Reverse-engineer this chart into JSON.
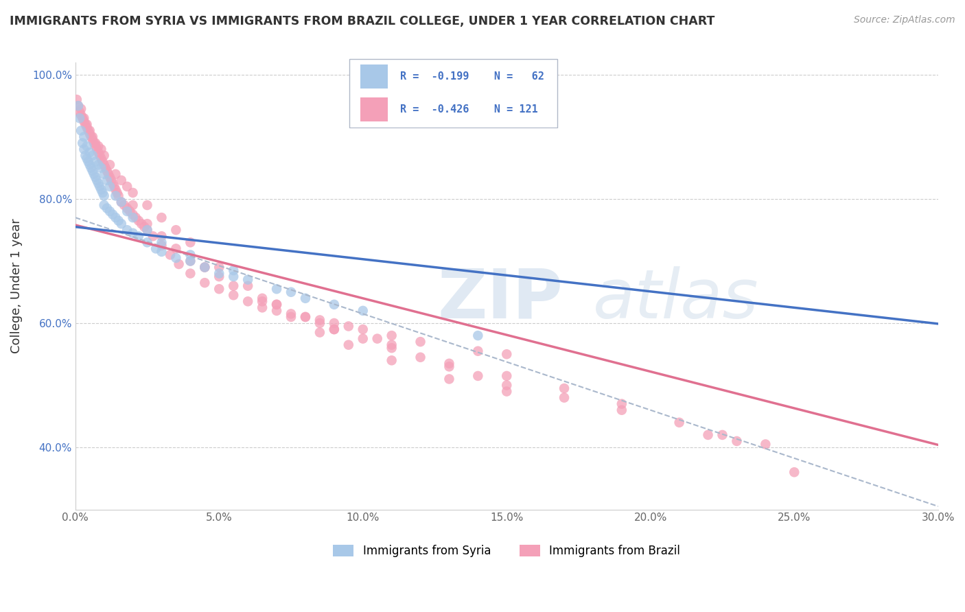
{
  "title": "IMMIGRANTS FROM SYRIA VS IMMIGRANTS FROM BRAZIL COLLEGE, UNDER 1 YEAR CORRELATION CHART",
  "source": "Source: ZipAtlas.com",
  "ylabel_label": "College, Under 1 year",
  "xlim": [
    0.0,
    30.0
  ],
  "ylim": [
    30.0,
    102.0
  ],
  "yticks": [
    40.0,
    60.0,
    80.0,
    100.0
  ],
  "xticks": [
    0.0,
    5.0,
    10.0,
    15.0,
    20.0,
    25.0,
    30.0
  ],
  "color_syria": "#a8c8e8",
  "color_brazil": "#f4a0b8",
  "color_text_blue": "#4472c4",
  "color_line_syria": "#4472c4",
  "color_line_brazil": "#e07090",
  "color_dashed": "#aab8cc",
  "syria_intercept": 75.5,
  "syria_slope": -0.52,
  "brazil_intercept": 75.8,
  "brazil_slope": -1.18,
  "dashed_intercept": 77.0,
  "dashed_slope": -1.55,
  "syria_points_x": [
    0.1,
    0.15,
    0.2,
    0.25,
    0.3,
    0.35,
    0.4,
    0.45,
    0.5,
    0.55,
    0.6,
    0.65,
    0.7,
    0.75,
    0.8,
    0.85,
    0.9,
    0.95,
    1.0,
    1.0,
    1.1,
    1.2,
    1.3,
    1.4,
    1.5,
    1.6,
    1.8,
    2.0,
    2.2,
    2.5,
    2.8,
    3.0,
    3.5,
    4.0,
    4.5,
    5.0,
    5.5,
    6.0,
    7.0,
    8.0,
    9.0,
    10.0,
    0.3,
    0.4,
    0.5,
    0.6,
    0.7,
    0.8,
    0.9,
    1.0,
    1.1,
    1.2,
    1.4,
    1.6,
    1.8,
    2.0,
    2.5,
    3.0,
    4.0,
    5.5,
    7.5,
    14.0
  ],
  "syria_points_y": [
    95.0,
    93.0,
    91.0,
    89.0,
    88.0,
    87.0,
    86.5,
    86.0,
    85.5,
    85.0,
    84.5,
    84.0,
    83.5,
    83.0,
    82.5,
    82.0,
    81.5,
    81.0,
    80.5,
    79.0,
    78.5,
    78.0,
    77.5,
    77.0,
    76.5,
    76.0,
    75.0,
    74.5,
    74.0,
    73.0,
    72.0,
    71.5,
    70.5,
    70.0,
    69.0,
    68.0,
    67.5,
    67.0,
    65.5,
    64.0,
    63.0,
    62.0,
    90.0,
    88.5,
    87.5,
    87.0,
    86.0,
    85.5,
    85.0,
    84.0,
    83.0,
    82.0,
    80.5,
    79.5,
    78.0,
    77.0,
    75.0,
    73.0,
    71.0,
    68.5,
    65.0,
    58.0
  ],
  "brazil_points_x": [
    0.05,
    0.1,
    0.15,
    0.2,
    0.25,
    0.3,
    0.35,
    0.4,
    0.45,
    0.5,
    0.55,
    0.6,
    0.65,
    0.7,
    0.75,
    0.8,
    0.85,
    0.9,
    0.95,
    1.0,
    1.05,
    1.1,
    1.15,
    1.2,
    1.25,
    1.3,
    1.35,
    1.4,
    1.45,
    1.5,
    1.6,
    1.7,
    1.8,
    1.9,
    2.0,
    2.1,
    2.2,
    2.3,
    2.4,
    2.5,
    2.7,
    3.0,
    3.3,
    3.6,
    4.0,
    4.5,
    5.0,
    5.5,
    6.0,
    6.5,
    7.0,
    7.5,
    8.0,
    8.5,
    9.0,
    9.5,
    10.0,
    11.0,
    12.0,
    14.0,
    15.0,
    0.2,
    0.3,
    0.4,
    0.5,
    0.6,
    0.7,
    0.8,
    0.9,
    1.0,
    1.2,
    1.4,
    1.6,
    1.8,
    2.0,
    2.5,
    3.0,
    3.5,
    4.0,
    5.0,
    6.0,
    7.0,
    8.0,
    9.0,
    10.0,
    11.0,
    12.0,
    13.0,
    14.0,
    15.0,
    17.0,
    19.0,
    21.0,
    2.0,
    3.0,
    4.0,
    5.0,
    7.0,
    9.0,
    11.0,
    13.0,
    15.0,
    17.0,
    19.0,
    2.5,
    4.5,
    6.5,
    8.5,
    10.5,
    3.5,
    4.5,
    5.5,
    6.5,
    7.5,
    8.5,
    9.5,
    11.0,
    13.0,
    15.0,
    22.0,
    22.5,
    23.0,
    24.0,
    25.0
  ],
  "brazil_points_y": [
    96.0,
    95.0,
    94.0,
    93.5,
    93.0,
    92.5,
    92.0,
    91.5,
    91.0,
    90.5,
    90.0,
    89.5,
    89.0,
    88.5,
    88.0,
    87.5,
    87.0,
    86.5,
    86.0,
    85.5,
    85.0,
    84.5,
    84.0,
    83.5,
    83.0,
    82.5,
    82.0,
    81.5,
    81.0,
    80.5,
    79.5,
    79.0,
    78.5,
    78.0,
    77.5,
    77.0,
    76.5,
    76.0,
    75.5,
    75.0,
    74.0,
    72.5,
    71.0,
    69.5,
    68.0,
    66.5,
    65.5,
    64.5,
    63.5,
    62.5,
    62.0,
    61.5,
    61.0,
    60.5,
    60.0,
    59.5,
    59.0,
    58.0,
    57.0,
    55.5,
    55.0,
    94.5,
    93.0,
    92.0,
    91.0,
    90.0,
    89.0,
    88.5,
    88.0,
    87.0,
    85.5,
    84.0,
    83.0,
    82.0,
    81.0,
    79.0,
    77.0,
    75.0,
    73.0,
    69.0,
    66.0,
    63.0,
    61.0,
    59.0,
    57.5,
    56.0,
    54.5,
    53.0,
    51.5,
    50.0,
    48.0,
    46.0,
    44.0,
    79.0,
    74.0,
    70.0,
    67.5,
    63.0,
    59.0,
    56.5,
    53.5,
    51.5,
    49.5,
    47.0,
    76.0,
    69.0,
    64.0,
    60.0,
    57.5,
    72.0,
    69.0,
    66.0,
    63.5,
    61.0,
    58.5,
    56.5,
    54.0,
    51.0,
    49.0,
    42.0,
    42.0,
    41.0,
    40.5,
    36.0
  ]
}
